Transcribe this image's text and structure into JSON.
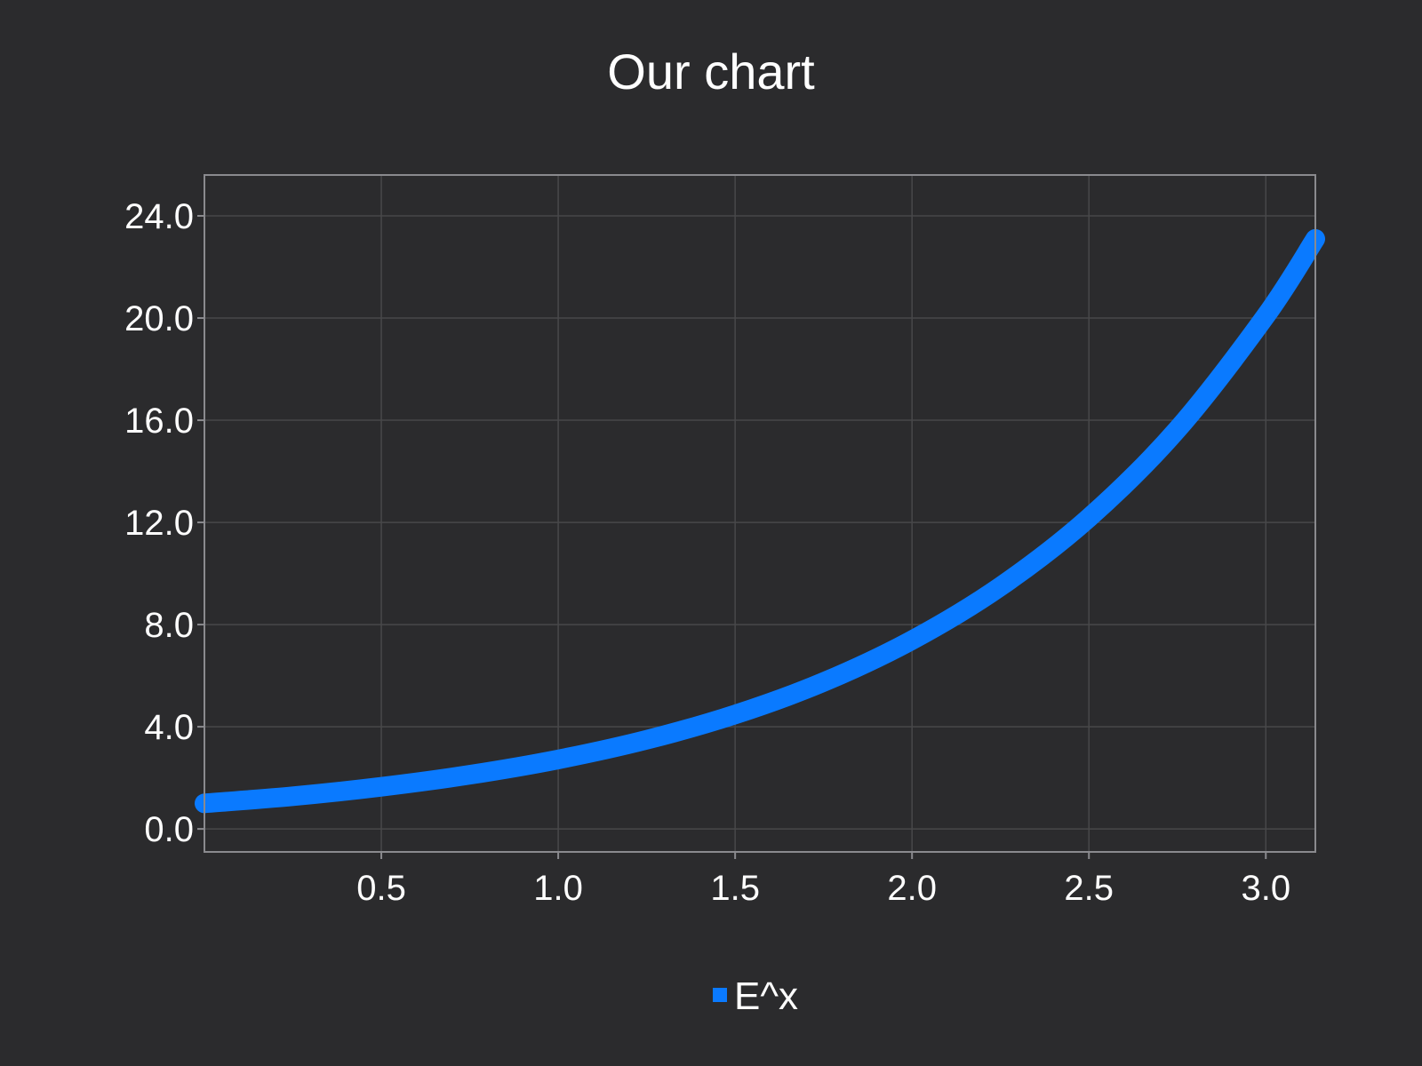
{
  "chart_data": {
    "type": "line",
    "title": "Our chart",
    "xlabel": "",
    "ylabel": "",
    "xlim": [
      0.0,
      3.14
    ],
    "ylim": [
      -0.9,
      25.6
    ],
    "x_ticks": [
      0.5,
      1.0,
      1.5,
      2.0,
      2.5,
      3.0
    ],
    "x_tick_labels": [
      "0.5",
      "1.0",
      "1.5",
      "2.0",
      "2.5",
      "3.0"
    ],
    "y_ticks": [
      0.0,
      4.0,
      8.0,
      12.0,
      16.0,
      20.0,
      24.0
    ],
    "y_tick_labels": [
      "0.0",
      "4.0",
      "8.0",
      "12.0",
      "16.0",
      "20.0",
      "24.0"
    ],
    "grid": true,
    "legend_position": "bottom-center",
    "series": [
      {
        "name": "E^x",
        "color": "#0a7aff",
        "x": [
          0.0,
          0.25,
          0.5,
          0.75,
          1.0,
          1.25,
          1.5,
          1.75,
          2.0,
          2.25,
          2.5,
          2.75,
          3.0,
          3.14
        ],
        "y": [
          1.0,
          1.28,
          1.65,
          2.12,
          2.72,
          3.49,
          4.48,
          5.75,
          7.39,
          9.49,
          12.18,
          15.64,
          20.09,
          23.1
        ]
      }
    ]
  },
  "colors": {
    "background": "#2b2b2d",
    "grid": "#48484a",
    "frame": "#8a8a8e",
    "text": "#ffffff"
  }
}
